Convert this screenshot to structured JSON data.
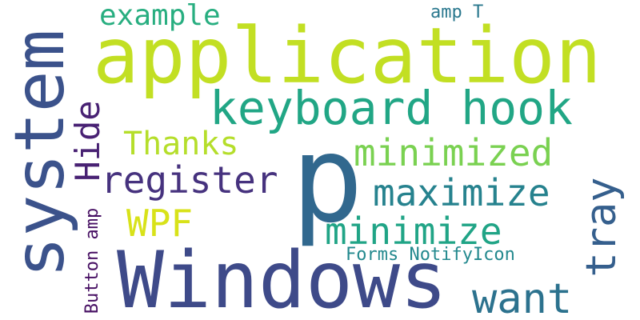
{
  "words": {
    "application": {
      "text": "application",
      "color": "#c2df23"
    },
    "windows": {
      "text": "Windows",
      "color": "#3e4a89"
    },
    "system": {
      "text": "system",
      "color": "#3b528b"
    },
    "p": {
      "text": "p",
      "color": "#31688e"
    },
    "keyboard_hook": {
      "text": "keyboard hook",
      "color": "#21a685"
    },
    "minimized": {
      "text": "minimized",
      "color": "#7ad151"
    },
    "register": {
      "text": "register",
      "color": "#46327e"
    },
    "maximize": {
      "text": "maximize",
      "color": "#26828e"
    },
    "minimize": {
      "text": "minimize",
      "color": "#20a486"
    },
    "hide": {
      "text": "Hide",
      "color": "#482173"
    },
    "tray": {
      "text": "tray",
      "color": "#355f8d"
    },
    "want": {
      "text": "want",
      "color": "#2c728e"
    },
    "thanks": {
      "text": "Thanks",
      "color": "#b5de2b"
    },
    "wpf": {
      "text": "WPF",
      "color": "#d8e219"
    },
    "example": {
      "text": "example",
      "color": "#28ae80"
    },
    "amp_t": {
      "text": "amp T",
      "color": "#2a788e"
    },
    "forms_notifyicon": {
      "text": "Forms NotifyIcon",
      "color": "#23898e"
    },
    "button_amp": {
      "text": "Button amp",
      "color": "#471063"
    }
  }
}
